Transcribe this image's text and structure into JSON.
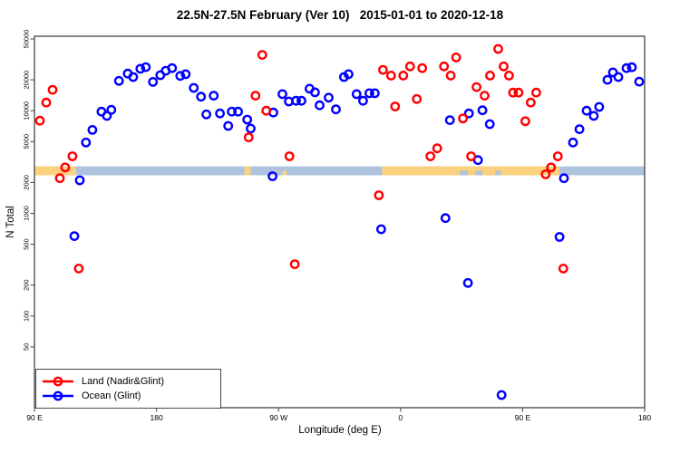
{
  "chart_data": {
    "type": "scatter",
    "title": "22.5N-27.5N February (Ver 10)   2015-01-01 to 2020-12-18",
    "xlabel": "Longitude (deg E)",
    "ylabel": "N Total",
    "x_axis": {
      "range_deg": [
        0,
        450
      ],
      "ticks": [
        {
          "deg": 0,
          "label": "90 E"
        },
        {
          "deg": 90,
          "label": "180"
        },
        {
          "deg": 180,
          "label": "90 W"
        },
        {
          "deg": 270,
          "label": "0"
        },
        {
          "deg": 360,
          "label": "90 E"
        },
        {
          "deg": 450,
          "label": "180"
        }
      ]
    },
    "y_axis": {
      "scale": "log",
      "range": [
        13,
        53000
      ],
      "ticks": [
        50,
        100,
        200,
        500,
        1000,
        2000,
        5000,
        10000,
        20000,
        50000
      ]
    },
    "point_fields": [
      "x_axis_deg",
      "n_total"
    ],
    "series": [
      {
        "name": "Land (Nadir&Glint)",
        "color": "#ff0000",
        "points": [
          [
            4,
            8000
          ],
          [
            8.7,
            12000
          ],
          [
            13.4,
            16000
          ],
          [
            18.7,
            2200
          ],
          [
            22.7,
            2800
          ],
          [
            28,
            3600
          ],
          [
            32.7,
            290
          ],
          [
            158,
            5500
          ],
          [
            163,
            14000
          ],
          [
            168,
            35000
          ],
          [
            171,
            10000
          ],
          [
            188,
            3600
          ],
          [
            192,
            320
          ],
          [
            254,
            1500
          ],
          [
            257,
            25000
          ],
          [
            263,
            22000
          ],
          [
            266,
            11000
          ],
          [
            272,
            22000
          ],
          [
            277,
            27000
          ],
          [
            282,
            13000
          ],
          [
            286,
            26000
          ],
          [
            292,
            3600
          ],
          [
            297,
            4300
          ],
          [
            302,
            27000
          ],
          [
            307,
            22000
          ],
          [
            311,
            33000
          ],
          [
            316,
            8400
          ],
          [
            322,
            3600
          ],
          [
            326,
            17000
          ],
          [
            332,
            14000
          ],
          [
            336,
            22000
          ],
          [
            342,
            40000
          ],
          [
            346,
            27000
          ],
          [
            350,
            22000
          ],
          [
            353,
            15000
          ],
          [
            357,
            15000
          ],
          [
            362,
            7900
          ],
          [
            366,
            12000
          ],
          [
            370,
            15000
          ],
          [
            377,
            2400
          ],
          [
            381,
            2800
          ],
          [
            386,
            3600
          ],
          [
            390,
            290
          ]
        ]
      },
      {
        "name": "Ocean (Glint)",
        "color": "#0000ff",
        "points": [
          [
            29.4,
            600
          ],
          [
            33.4,
            2100
          ],
          [
            38,
            4900
          ],
          [
            42.7,
            6500
          ],
          [
            49.4,
            9800
          ],
          [
            53.4,
            8900
          ],
          [
            56.7,
            10200
          ],
          [
            62.3,
            19500
          ],
          [
            68.8,
            23000
          ],
          [
            72.8,
            21300
          ],
          [
            78.1,
            25600
          ],
          [
            82.1,
            26600
          ],
          [
            87.4,
            19100
          ],
          [
            92.8,
            22200
          ],
          [
            96.8,
            24500
          ],
          [
            101.5,
            26000
          ],
          [
            107.5,
            21800
          ],
          [
            111.5,
            22700
          ],
          [
            117.5,
            16700
          ],
          [
            122.8,
            13700
          ],
          [
            126.8,
            9200
          ],
          [
            132.2,
            14000
          ],
          [
            136.8,
            9400
          ],
          [
            142.9,
            7100
          ],
          [
            145.5,
            9800
          ],
          [
            150.2,
            9800
          ],
          [
            156.9,
            8200
          ],
          [
            159.5,
            6700
          ],
          [
            175.6,
            2300
          ],
          [
            176.2,
            9600
          ],
          [
            182.9,
            14500
          ],
          [
            187.6,
            12300
          ],
          [
            192.9,
            12500
          ],
          [
            196.9,
            12500
          ],
          [
            202.9,
            16400
          ],
          [
            206.9,
            15100
          ],
          [
            210.3,
            11300
          ],
          [
            217,
            13400
          ],
          [
            222.3,
            10300
          ],
          [
            228.3,
            21300
          ],
          [
            231.6,
            22700
          ],
          [
            237.6,
            14500
          ],
          [
            242.3,
            12500
          ],
          [
            247,
            14800
          ],
          [
            251,
            14800
          ],
          [
            255.7,
            700
          ],
          [
            303.1,
            900
          ],
          [
            306.4,
            8100
          ],
          [
            319.7,
            210
          ],
          [
            320.4,
            9400
          ],
          [
            327.1,
            3300
          ],
          [
            330.4,
            10100
          ],
          [
            335.8,
            7400
          ],
          [
            344.5,
            17
          ],
          [
            387.2,
            590
          ],
          [
            390.5,
            2200
          ],
          [
            397.2,
            4900
          ],
          [
            401.9,
            6600
          ],
          [
            407.2,
            10000
          ],
          [
            412.5,
            8900
          ],
          [
            416.5,
            10900
          ],
          [
            422.6,
            20000
          ],
          [
            426.6,
            23600
          ],
          [
            430.6,
            21300
          ],
          [
            436.6,
            26000
          ],
          [
            440.6,
            26500
          ],
          [
            446,
            19200
          ]
        ]
      }
    ],
    "map_strip": {
      "value_top": 2870,
      "value_bottom": 2350,
      "ocean_color": "#aec3de",
      "land_color": "#fbd180",
      "land_segments_deg": [
        [
          0,
          30.7
        ],
        [
          154.9,
          159.5
        ],
        [
          256.3,
          387.2
        ]
      ],
      "land_patches_deg": [
        [
          176,
          178
        ],
        [
          183,
          186
        ]
      ],
      "ocean_inlets_deg": [
        [
          313.8,
          319.8
        ],
        [
          325.1,
          330.4
        ],
        [
          339.8,
          343.8
        ]
      ]
    },
    "legend_position": "bottom-left"
  }
}
